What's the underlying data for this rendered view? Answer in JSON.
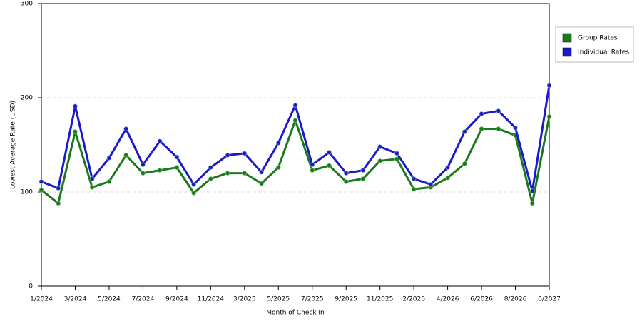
{
  "chart_data": {
    "type": "line",
    "x_label": "Month of Check In",
    "y_label": "Lowest Average Rate (USD)",
    "categories": [
      "1/2024",
      null,
      "3/2024",
      null,
      "5/2024",
      null,
      "7/2024",
      null,
      "9/2024",
      null,
      "11/2024",
      null,
      "3/2025",
      null,
      "5/2025",
      null,
      "7/2025",
      null,
      "9/2025",
      null,
      "11/2025",
      null,
      "2/2026",
      null,
      "4/2026",
      null,
      "6/2026",
      null,
      "8/2026",
      null,
      "6/2027"
    ],
    "series": [
      {
        "name": "Group Rates",
        "color": "#1a7a1a",
        "values": [
          102,
          88,
          164,
          105,
          111,
          139,
          120,
          123,
          126,
          99,
          114,
          120,
          120,
          109,
          126,
          176,
          123,
          128,
          111,
          114,
          133,
          135,
          103,
          105,
          115,
          130,
          167,
          167,
          160,
          88,
          180
        ]
      },
      {
        "name": "Individual Rates",
        "color": "#1a1acc",
        "values": [
          111,
          104,
          191,
          114,
          136,
          167,
          129,
          154,
          137,
          108,
          126,
          139,
          141,
          121,
          152,
          192,
          129,
          142,
          120,
          123,
          148,
          141,
          114,
          108,
          126,
          164,
          183,
          186,
          168,
          101,
          213
        ]
      }
    ],
    "ylim": [
      0,
      300
    ],
    "yticks": [
      0,
      100,
      200,
      300
    ],
    "grid": true,
    "legend": "right"
  }
}
